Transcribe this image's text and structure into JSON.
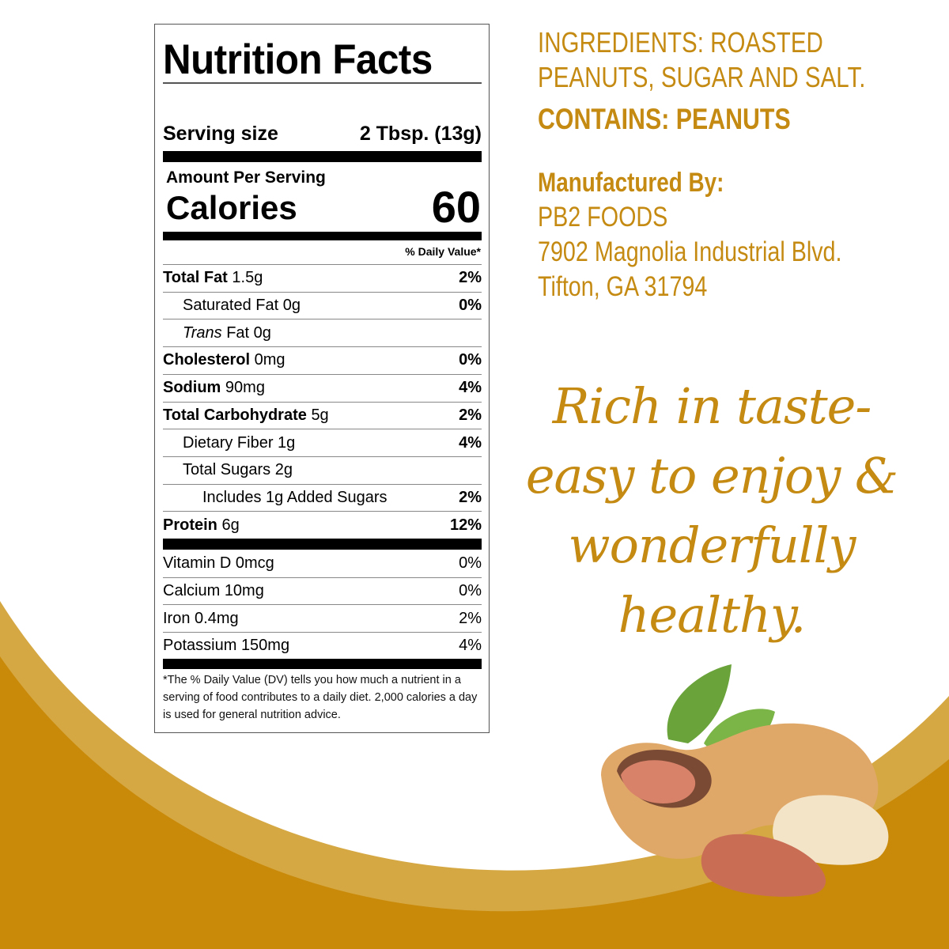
{
  "label": {
    "title": "Nutrition Facts",
    "serving_label": "Serving size",
    "serving_value": "2 Tbsp. (13g)",
    "amount_per_serving": "Amount Per Serving",
    "calories_label": "Calories",
    "calories_value": "60",
    "dv_header": "% Daily Value*",
    "nutrients": [
      {
        "name": "Total Fat",
        "amount": "1.5g",
        "dv": "2%",
        "bold": true,
        "indent": 0
      },
      {
        "name": "Saturated Fat",
        "amount": "0g",
        "dv": "0%",
        "bold": false,
        "indent": 1
      },
      {
        "name": "Trans",
        "name_suffix": "Fat",
        "amount": "0g",
        "dv": "",
        "bold": false,
        "indent": 1
      },
      {
        "name": "Cholesterol",
        "amount": "0mg",
        "dv": "0%",
        "bold": true,
        "indent": 0
      },
      {
        "name": "Sodium",
        "amount": "90mg",
        "dv": "4%",
        "bold": true,
        "indent": 0
      },
      {
        "name": "Total Carbohydrate",
        "amount": "5g",
        "dv": "2%",
        "bold": true,
        "indent": 0
      },
      {
        "name": "Dietary Fiber",
        "amount": "1g",
        "dv": "4%",
        "bold": false,
        "indent": 1
      },
      {
        "name": "Total Sugars",
        "amount": "2g",
        "dv": "",
        "bold": false,
        "indent": 1
      },
      {
        "name": "Includes 1g Added Sugars",
        "amount": "",
        "dv": "2%",
        "bold": false,
        "indent": 2
      },
      {
        "name": "Protein",
        "amount": "6g",
        "dv": "12%",
        "bold": true,
        "indent": 0
      }
    ],
    "vitamins": [
      {
        "name": "Vitamin D",
        "amount": "0mcg",
        "dv": "0%"
      },
      {
        "name": "Calcium",
        "amount": "10mg",
        "dv": "0%"
      },
      {
        "name": "Iron",
        "amount": "0.4mg",
        "dv": "2%"
      },
      {
        "name": "Potassium",
        "amount": "150mg",
        "dv": "4%"
      }
    ],
    "footnote": "*The % Daily Value (DV) tells you how much a nutrient in a serving of food contributes to a daily diet. 2,000 calories a day is used for general nutrition advice."
  },
  "info": {
    "ingredients": "INGREDIENTS: ROASTED PEANUTS, SUGAR AND SALT.",
    "contains": "CONTAINS: PEANUTS",
    "manufactured_by": "Manufactured By:",
    "address": [
      "PB2 FOODS",
      "7902 Magnolia Industrial Blvd.",
      "Tifton, GA 31794"
    ]
  },
  "tagline": [
    "Rich in taste-",
    "easy to enjoy &",
    "wonderfully",
    "healthy."
  ],
  "colors": {
    "text_gold": "#c48a12",
    "band_light": "#d6a843",
    "band_dark": "#c98a0a"
  },
  "illustration": "peanut-illustration"
}
